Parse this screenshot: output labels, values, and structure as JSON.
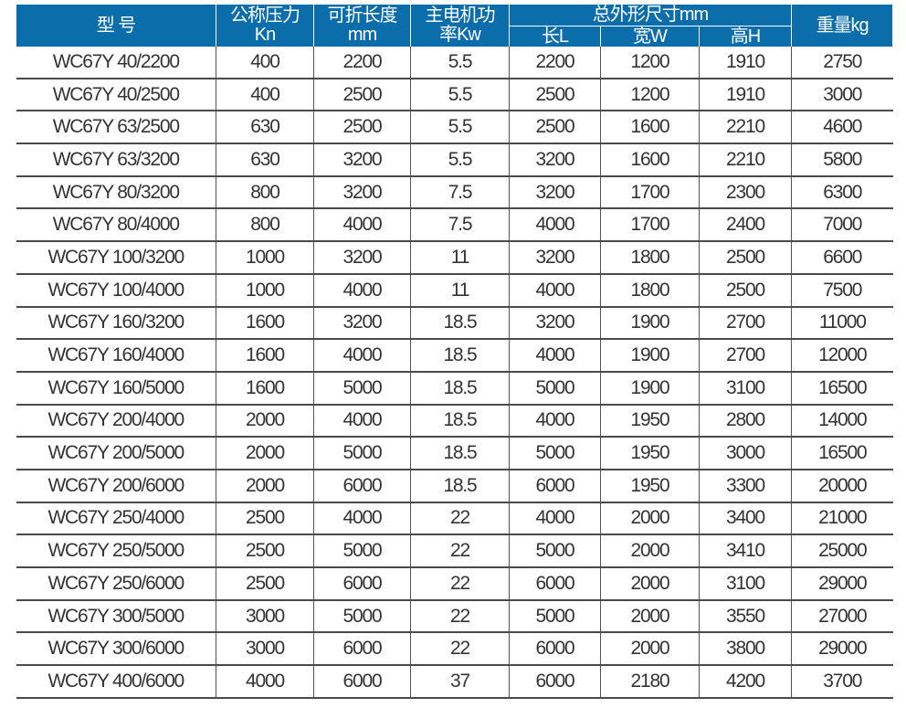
{
  "header": {
    "model": "型 号",
    "pressure": [
      "公称压力",
      "Kn"
    ],
    "length": [
      "可折长度",
      "mm"
    ],
    "power": [
      "主电机功",
      "率Kw"
    ],
    "dimensions": "总外形尺寸mm",
    "dim_l": "长L",
    "dim_w": "宽W",
    "dim_h": "高H",
    "weight": "重量kg"
  },
  "rows": [
    [
      "WC67Y 40/2200",
      "400",
      "2200",
      "5.5",
      "2200",
      "1200",
      "1910",
      "2750"
    ],
    [
      "WC67Y 40/2500",
      "400",
      "2500",
      "5.5",
      "2500",
      "1200",
      "1910",
      "3000"
    ],
    [
      "WC67Y 63/2500",
      "630",
      "2500",
      "5.5",
      "2500",
      "1600",
      "2210",
      "4600"
    ],
    [
      "WC67Y 63/3200",
      "630",
      "3200",
      "5.5",
      "3200",
      "1600",
      "2210",
      "5800"
    ],
    [
      "WC67Y 80/3200",
      "800",
      "3200",
      "7.5",
      "3200",
      "1700",
      "2300",
      "6300"
    ],
    [
      "WC67Y 80/4000",
      "800",
      "4000",
      "7.5",
      "4000",
      "1700",
      "2400",
      "7000"
    ],
    [
      "WC67Y 100/3200",
      "1000",
      "3200",
      "11",
      "3200",
      "1800",
      "2500",
      "6600"
    ],
    [
      "WC67Y 100/4000",
      "1000",
      "4000",
      "11",
      "4000",
      "1800",
      "2500",
      "7500"
    ],
    [
      "WC67Y 160/3200",
      "1600",
      "3200",
      "18.5",
      "3200",
      "1900",
      "2700",
      "11000"
    ],
    [
      "WC67Y 160/4000",
      "1600",
      "4000",
      "18.5",
      "4000",
      "1900",
      "2700",
      "12000"
    ],
    [
      "WC67Y 160/5000",
      "1600",
      "5000",
      "18.5",
      "5000",
      "1900",
      "3100",
      "16500"
    ],
    [
      "WC67Y 200/4000",
      "2000",
      "4000",
      "18.5",
      "4000",
      "1950",
      "2800",
      "14000"
    ],
    [
      "WC67Y 200/5000",
      "2000",
      "5000",
      "18.5",
      "5000",
      "1950",
      "3000",
      "16500"
    ],
    [
      "WC67Y 200/6000",
      "2000",
      "6000",
      "18.5",
      "6000",
      "1950",
      "3300",
      "20000"
    ],
    [
      "WC67Y 250/4000",
      "2500",
      "4000",
      "22",
      "4000",
      "2000",
      "3400",
      "21000"
    ],
    [
      "WC67Y 250/5000",
      "2500",
      "5000",
      "22",
      "5000",
      "2000",
      "3410",
      "25000"
    ],
    [
      "WC67Y 250/6000",
      "2500",
      "6000",
      "22",
      "6000",
      "2000",
      "3100",
      "29000"
    ],
    [
      "WC67Y 300/5000",
      "3000",
      "5000",
      "22",
      "5000",
      "2000",
      "3550",
      "27000"
    ],
    [
      "WC67Y 300/6000",
      "3000",
      "6000",
      "22",
      "6000",
      "2000",
      "3800",
      "29000"
    ],
    [
      "WC67Y 400/6000",
      "4000",
      "6000",
      "37",
      "6000",
      "2180",
      "4200",
      "3700"
    ]
  ]
}
